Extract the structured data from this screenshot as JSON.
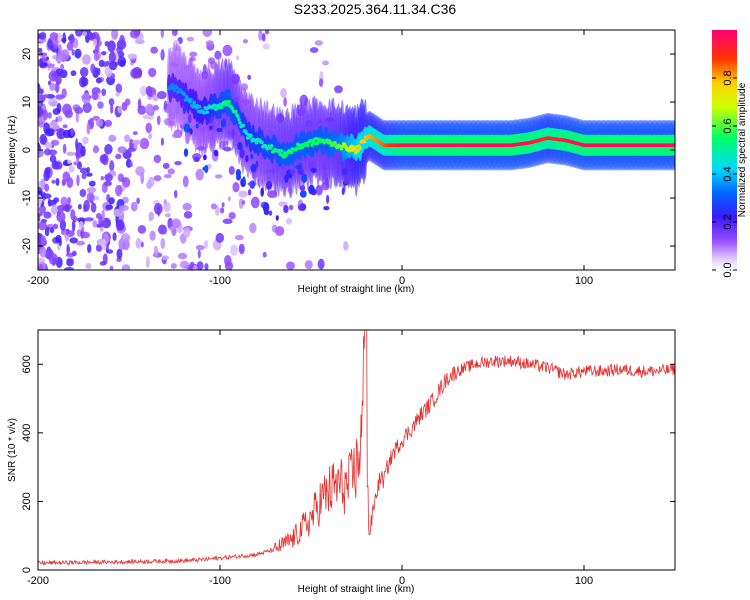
{
  "figure_title": "S233.2025.364.11.34.C36",
  "colors": {
    "snr_line": "#e53030",
    "axis": "#000000",
    "trace_core": "#ff0033"
  },
  "chart_data": [
    {
      "type": "heatmap",
      "title": "S233.2025.364.11.34.C36",
      "xlabel": "Height of straight line (km)",
      "ylabel": "Frequency (Hz)",
      "xlim": [
        -200,
        150
      ],
      "ylim": [
        -25,
        25
      ],
      "xticks": [
        -200,
        -100,
        0,
        100
      ],
      "yticks": [
        -20,
        -10,
        0,
        10,
        20
      ],
      "colorbar": {
        "label": "Normalized spectral amplitude",
        "range": [
          0,
          1
        ],
        "ticks": [
          "0.0",
          "0.2",
          "0.4",
          "0.6",
          "0.8"
        ],
        "colormap": "rainbow (violet-blue-cyan-green-yellow-red-magenta)"
      },
      "description_points": {
        "trace_frequency_hz": [
          [
            -125,
            13
          ],
          [
            -110,
            8
          ],
          [
            -95,
            10
          ],
          [
            -85,
            3
          ],
          [
            -75,
            1
          ],
          [
            -65,
            -1
          ],
          [
            -55,
            1
          ],
          [
            -45,
            2
          ],
          [
            -35,
            1
          ],
          [
            -25,
            0
          ],
          [
            -18,
            3
          ],
          [
            -10,
            1
          ],
          [
            0,
            1
          ],
          [
            20,
            1
          ],
          [
            40,
            1
          ],
          [
            60,
            1
          ],
          [
            70,
            1.5
          ],
          [
            80,
            2.5
          ],
          [
            90,
            2
          ],
          [
            100,
            1
          ],
          [
            120,
            1
          ],
          [
            150,
            1
          ]
        ],
        "trace_amplitude": [
          [
            -125,
            0.35
          ],
          [
            -110,
            0.4
          ],
          [
            -95,
            0.55
          ],
          [
            -85,
            0.45
          ],
          [
            -75,
            0.5
          ],
          [
            -65,
            0.55
          ],
          [
            -55,
            0.55
          ],
          [
            -45,
            0.55
          ],
          [
            -35,
            0.6
          ],
          [
            -25,
            0.75
          ],
          [
            -18,
            0.8
          ],
          [
            -10,
            0.85
          ],
          [
            0,
            0.95
          ],
          [
            20,
            0.97
          ],
          [
            40,
            0.97
          ],
          [
            60,
            0.97
          ],
          [
            70,
            0.95
          ],
          [
            80,
            0.9
          ],
          [
            90,
            0.95
          ],
          [
            100,
            0.97
          ],
          [
            120,
            0.97
          ],
          [
            150,
            0.97
          ]
        ]
      }
    },
    {
      "type": "line",
      "title": "",
      "xlabel": "Height of straight line (km)",
      "ylabel": "SNR (10 * v/v)",
      "xlim": [
        -200,
        150
      ],
      "ylim": [
        0,
        700
      ],
      "xticks": [
        -200,
        -100,
        0,
        100
      ],
      "yticks": [
        0,
        200,
        400,
        600
      ],
      "series": [
        {
          "name": "SNR",
          "x": [
            -200,
            -180,
            -160,
            -140,
            -120,
            -110,
            -100,
            -90,
            -80,
            -70,
            -60,
            -50,
            -45,
            -40,
            -35,
            -30,
            -25,
            -22,
            -20,
            -19,
            -18,
            -15,
            -12,
            -10,
            -8,
            -5,
            0,
            5,
            10,
            15,
            20,
            25,
            30,
            40,
            50,
            60,
            70,
            80,
            90,
            100,
            110,
            120,
            130,
            140,
            150
          ],
          "y": [
            20,
            22,
            23,
            25,
            27,
            30,
            35,
            40,
            45,
            60,
            90,
            150,
            200,
            230,
            250,
            240,
            300,
            400,
            700,
            250,
            100,
            200,
            270,
            260,
            300,
            340,
            380,
            410,
            450,
            480,
            520,
            560,
            580,
            600,
            610,
            610,
            600,
            590,
            570,
            580,
            580,
            585,
            580,
            580,
            585
          ]
        }
      ]
    }
  ]
}
